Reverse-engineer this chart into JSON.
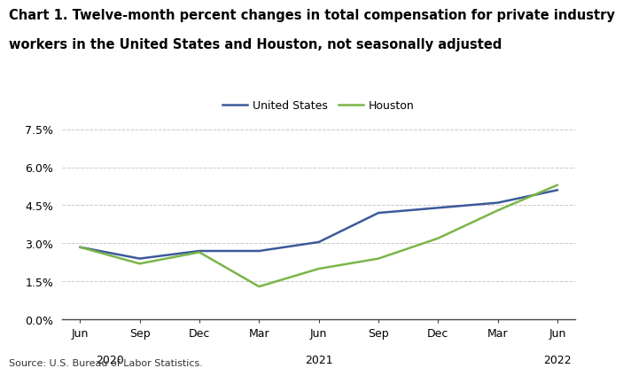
{
  "title_line1": "Chart 1. Twelve-month percent changes in total compensation for private industry",
  "title_line2": "workers in the United States and Houston, not seasonally adjusted",
  "source": "Source: U.S. Bureau of Labor Statistics.",
  "x_labels": [
    "Jun",
    "Sep",
    "Dec",
    "Mar",
    "Jun",
    "Sep",
    "Dec",
    "Mar",
    "Jun"
  ],
  "us_values": [
    2.85,
    2.4,
    2.7,
    2.7,
    3.05,
    4.2,
    4.4,
    4.6,
    5.1
  ],
  "houston_values": [
    2.85,
    2.2,
    2.65,
    1.3,
    2.0,
    2.4,
    3.2,
    4.3,
    5.3
  ],
  "us_color": "#3C5A99",
  "houston_color": "#7AB648",
  "ylim": [
    0.0,
    7.5
  ],
  "yticks": [
    0.0,
    1.5,
    3.0,
    4.5,
    6.0,
    7.5
  ],
  "ytick_labels": [
    "0.0%",
    "1.5%",
    "3.0%",
    "4.5%",
    "6.0%",
    "7.5%"
  ],
  "legend_us": "United States",
  "legend_houston": "Houston",
  "background_color": "#FFFFFF",
  "grid_color": "#BBBBBB",
  "title_fontsize": 10.5,
  "axis_fontsize": 9,
  "legend_fontsize": 9,
  "source_fontsize": 8
}
